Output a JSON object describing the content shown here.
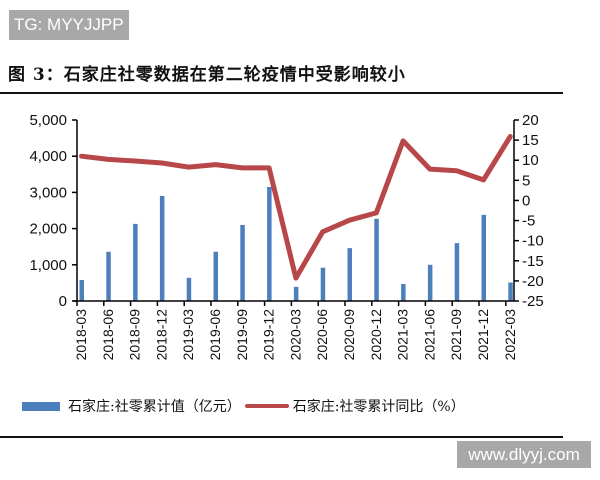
{
  "watermarks": {
    "top": "TG: MYYJJPP",
    "bottom": "www.dlyyj.com"
  },
  "figure": {
    "title": "图 3：石家庄社零数据在第二轮疫情中受影响较小"
  },
  "legend": {
    "bar_label": "石家庄:社零累计值（亿元）",
    "line_label": "石家庄:社零累计同比（%）"
  },
  "colors": {
    "bar": "#4e7fbd",
    "line": "#b8474a"
  },
  "chart_data": {
    "type": "bar+line",
    "title": "图 3：石家庄社零数据在第二轮疫情中受影响较小",
    "categories": [
      "2018-03",
      "2018-06",
      "2018-09",
      "2018-12",
      "2019-03",
      "2019-06",
      "2019-09",
      "2019-12",
      "2020-03",
      "2020-06",
      "2020-09",
      "2020-12",
      "2021-03",
      "2021-06",
      "2021-09",
      "2021-12",
      "2022-03"
    ],
    "series": [
      {
        "name": "石家庄:社零累计值（亿元）",
        "type": "bar",
        "axis": "left",
        "values": [
          580,
          1360,
          2130,
          2900,
          640,
          1360,
          2100,
          3150,
          390,
          920,
          1460,
          2270,
          470,
          1000,
          1600,
          2380,
          510
        ]
      },
      {
        "name": "石家庄:社零累计同比（%）",
        "type": "line",
        "axis": "right",
        "values": [
          11.0,
          10.2,
          9.8,
          9.3,
          8.3,
          8.9,
          8.1,
          8.1,
          -19.3,
          -7.8,
          -4.9,
          -3.1,
          14.8,
          7.8,
          7.4,
          5.1,
          15.9
        ]
      }
    ],
    "left_axis": {
      "ylim": [
        0,
        5000
      ],
      "ticks": [
        "0",
        "1,000",
        "2,000",
        "3,000",
        "4,000",
        "5,000"
      ],
      "tick_values": [
        0,
        1000,
        2000,
        3000,
        4000,
        5000
      ]
    },
    "right_axis": {
      "ylim": [
        -25,
        20
      ],
      "ticks": [
        "-25",
        "-20",
        "-15",
        "-10",
        "-5",
        "0",
        "5",
        "10",
        "15",
        "20"
      ],
      "tick_values": [
        -25,
        -20,
        -15,
        -10,
        -5,
        0,
        5,
        10,
        15,
        20
      ]
    },
    "xlabel": "",
    "ylabel": "",
    "grid": false,
    "legend_position": "bottom"
  }
}
